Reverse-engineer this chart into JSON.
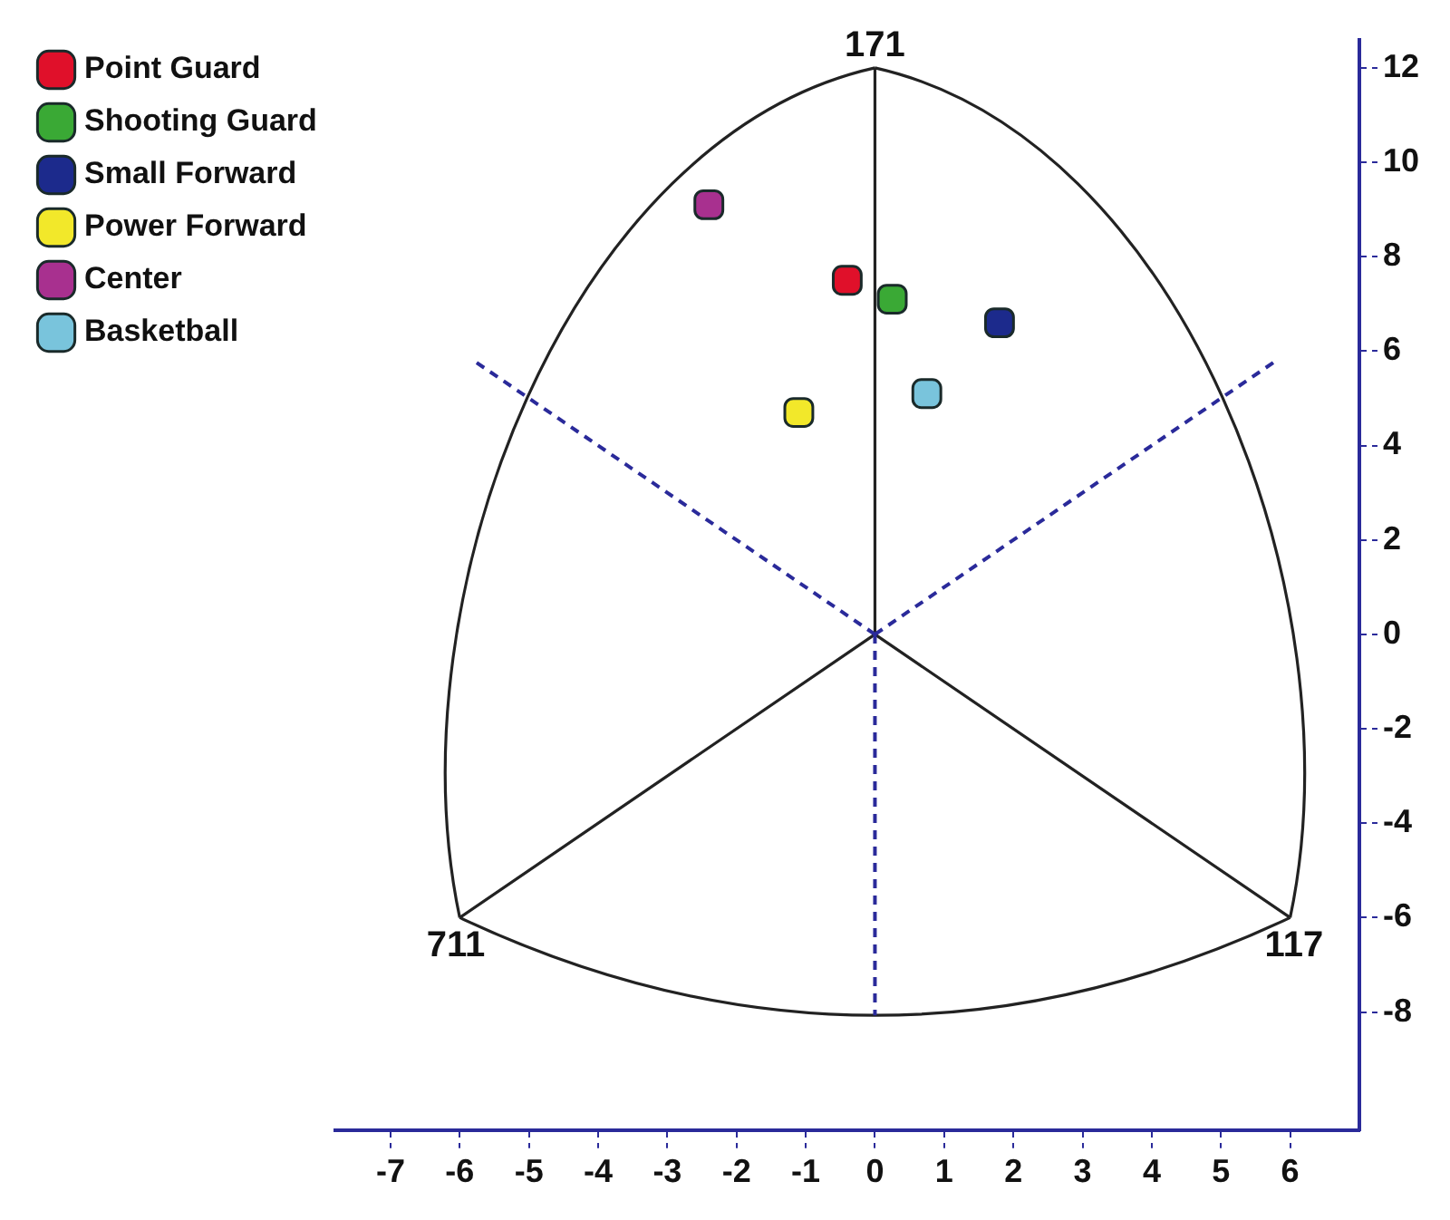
{
  "chart_data": {
    "type": "scatter",
    "series": [
      {
        "name": "Point Guard",
        "color": "#e0102a",
        "x": [
          -0.4
        ],
        "values": [
          7.5
        ]
      },
      {
        "name": "Shooting Guard",
        "color": "#3aa935",
        "x": [
          0.25
        ],
        "values": [
          7.1
        ]
      },
      {
        "name": "Small Forward",
        "color": "#1c2a8c",
        "x": [
          1.8
        ],
        "values": [
          6.6
        ]
      },
      {
        "name": "Power Forward",
        "color": "#f2e82a",
        "x": [
          -1.1
        ],
        "values": [
          4.7
        ]
      },
      {
        "name": "Center",
        "color": "#a8308f",
        "x": [
          -2.4
        ],
        "values": [
          9.1
        ]
      },
      {
        "name": "Basketball",
        "color": "#79c4dc",
        "x": [
          0.75
        ],
        "values": [
          5.1
        ]
      }
    ],
    "xlim": [
      -7.8,
      7.0
    ],
    "ylim": [
      -10.5,
      12.6
    ],
    "xticks": [
      -7,
      -6,
      -5,
      -4,
      -3,
      -2,
      -1,
      0,
      1,
      2,
      3,
      4,
      5,
      6
    ],
    "yticks": [
      -8,
      -6,
      -4,
      -2,
      0,
      2,
      4,
      6,
      8,
      10,
      12
    ],
    "legend": "top left",
    "marker": "square",
    "annotations": [
      "171",
      "711",
      "117"
    ]
  }
}
